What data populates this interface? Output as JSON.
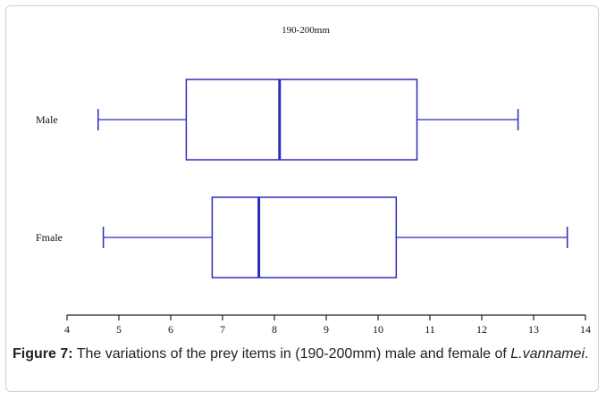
{
  "chart_data": {
    "type": "boxplot",
    "title": "190-200mm",
    "orientation": "horizontal",
    "color": "#2b2bbf",
    "xlim": [
      4,
      14
    ],
    "x_ticks": [
      4,
      5,
      6,
      7,
      8,
      9,
      10,
      11,
      12,
      13,
      14
    ],
    "categories": [
      "Male",
      "Fmale"
    ],
    "series": [
      {
        "name": "Male",
        "min": 4.6,
        "q1": 6.3,
        "median": 8.1,
        "q3": 10.75,
        "max": 12.7
      },
      {
        "name": "Fmale",
        "min": 4.7,
        "q1": 6.8,
        "median": 7.7,
        "q3": 10.35,
        "max": 13.65
      }
    ]
  },
  "caption": {
    "label": "Figure 7:",
    "text": " The variations of the prey items in (190-200mm) male and female of ",
    "species": "L.vannamei",
    "end": "."
  }
}
